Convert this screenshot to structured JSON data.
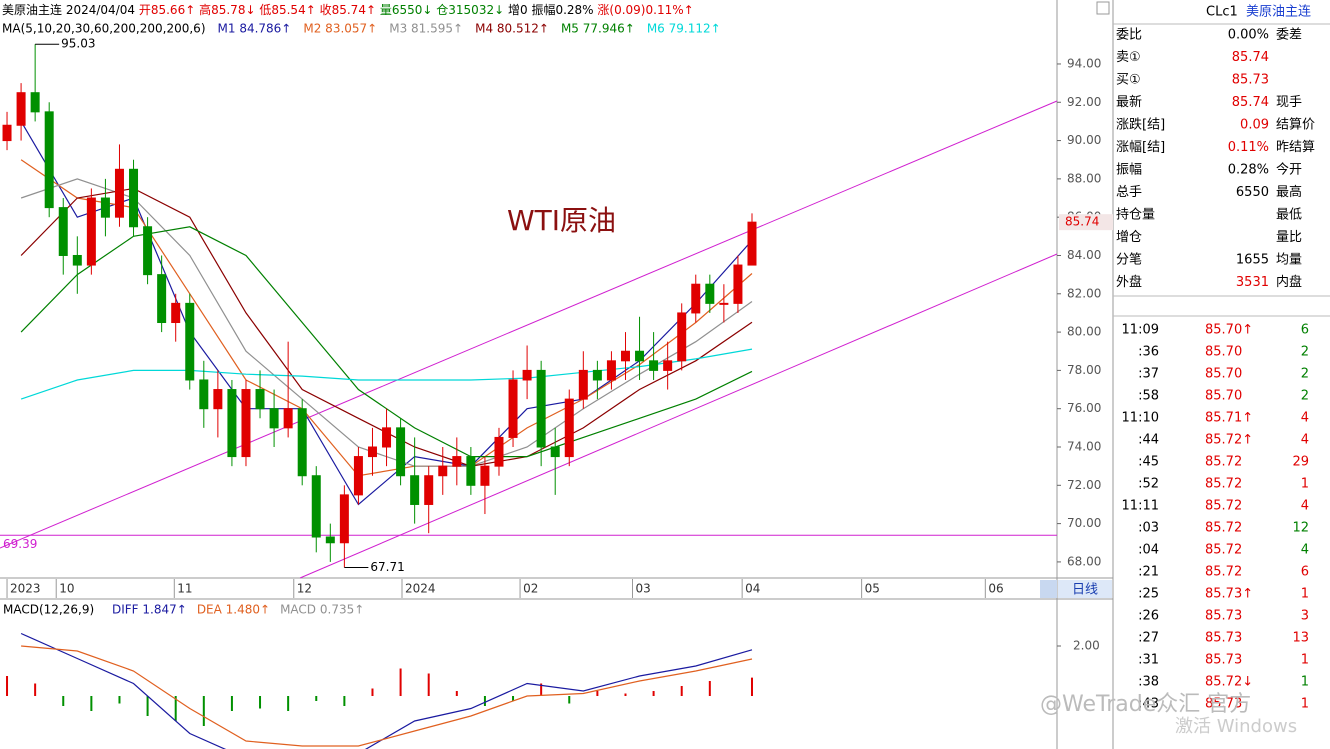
{
  "chart_data": {
    "type": "candlestick",
    "header": [
      {
        "text": "美原油主连",
        "color": "#000000"
      },
      {
        "text": "2024/04/04",
        "color": "#000000"
      },
      {
        "text": "开85.66↑",
        "color": "#e00000"
      },
      {
        "text": "高85.78↓",
        "color": "#e00000"
      },
      {
        "text": "低85.54↑",
        "color": "#e00000"
      },
      {
        "text": "收85.74↑",
        "color": "#e00000"
      },
      {
        "text": "量6550↓",
        "color": "#008000"
      },
      {
        "text": "仓315032↓",
        "color": "#008000"
      },
      {
        "text": "增0",
        "color": "#000000"
      },
      {
        "text": "振幅0.28%",
        "color": "#000000"
      },
      {
        "text": "涨(0.09)0.11%↑",
        "color": "#e00000"
      }
    ],
    "ma_title": "MA(5,10,20,30,60,200,200,200,6)",
    "title": "WTI原油",
    "xlim": [
      -0.5,
      74.7
    ],
    "xticks": [
      {
        "value": 0,
        "label": "2023"
      },
      {
        "value": 3.5,
        "label": "10"
      },
      {
        "value": 11.9,
        "label": "11"
      },
      {
        "value": 20.4,
        "label": "12"
      },
      {
        "value": 28.1,
        "label": "2024"
      },
      {
        "value": 36.5,
        "label": "02"
      },
      {
        "value": 44.5,
        "label": "03"
      },
      {
        "value": 52.3,
        "label": "04"
      },
      {
        "value": 60.8,
        "label": "05"
      },
      {
        "value": 69.6,
        "label": "06"
      }
    ],
    "period": "日线",
    "ylim": [
      67.16,
      97.34
    ],
    "yticks": [
      {
        "value": 68,
        "label": "68.00"
      },
      {
        "value": 70,
        "label": "70.00"
      },
      {
        "value": 72,
        "label": "72.00"
      },
      {
        "value": 74,
        "label": "74.00"
      },
      {
        "value": 76,
        "label": "76.00"
      },
      {
        "value": 78,
        "label": "78.00"
      },
      {
        "value": 80,
        "label": "80.00"
      },
      {
        "value": 82,
        "label": "82.00"
      },
      {
        "value": 84,
        "label": "84.00"
      },
      {
        "value": 86,
        "label": "86.00"
      },
      {
        "value": 88,
        "label": "88.00"
      },
      {
        "value": 90,
        "label": "90.00"
      },
      {
        "value": 92,
        "label": "92.00"
      },
      {
        "value": 94,
        "label": "94.00"
      }
    ],
    "up_color": "#e00000",
    "down_color": "#009000",
    "candles": {
      "open": [
        90,
        90.8,
        92.5,
        91.5,
        86.5,
        84,
        83.5,
        87,
        86,
        88.5,
        85.5,
        83,
        80.5,
        81.5,
        77.5,
        76,
        77,
        73.5,
        77,
        76,
        75,
        76,
        72.5,
        69.3,
        69,
        71.5,
        73.5,
        74,
        75,
        72.5,
        71,
        72.5,
        73,
        73.5,
        72,
        73,
        74.5,
        77.5,
        78,
        74,
        73.5,
        76.5,
        78,
        77.5,
        78.5,
        79,
        78.5,
        78,
        78.5,
        81,
        82.5,
        81.5,
        81.5,
        83.5
      ],
      "high": [
        91.5,
        93,
        95.03,
        92,
        87,
        85,
        87.5,
        88,
        89.8,
        89,
        86,
        84,
        82,
        82,
        78.5,
        78,
        77.5,
        77.5,
        78,
        77,
        79.5,
        76.5,
        73,
        70,
        72,
        74,
        75,
        76,
        75.5,
        74.5,
        73,
        74,
        74.5,
        74,
        73.5,
        75,
        78,
        79.3,
        78.5,
        75,
        77,
        79,
        78.5,
        79,
        80,
        80.8,
        80,
        79.5,
        81.5,
        83,
        83,
        82.5,
        84,
        86.2
      ],
      "low": [
        89.5,
        90,
        91,
        86,
        83,
        82,
        83,
        85,
        85.5,
        85,
        82.5,
        80,
        79.5,
        77,
        75,
        74.5,
        73,
        73,
        75.5,
        74,
        74.5,
        72,
        68.5,
        68,
        67.71,
        71,
        72.5,
        73,
        72,
        70,
        69.5,
        71.5,
        72,
        71.5,
        70.5,
        72.5,
        74,
        76.5,
        73,
        71.5,
        73,
        76,
        76.5,
        77,
        77.5,
        77.5,
        77.5,
        77,
        78,
        80.5,
        81,
        80.5,
        81,
        83.5
      ],
      "close": [
        90.8,
        92.5,
        91.5,
        86.5,
        84,
        83.5,
        87,
        86,
        88.5,
        85.5,
        83,
        80.5,
        81.5,
        77.5,
        76,
        77,
        73.5,
        77,
        76,
        75,
        76,
        72.5,
        69.3,
        69,
        71.5,
        73.5,
        74,
        75,
        72.5,
        71,
        72.5,
        73,
        73.5,
        72,
        73,
        74.5,
        77.5,
        78,
        74,
        73.5,
        76.5,
        78,
        77.5,
        78.5,
        79,
        78.5,
        78,
        78.5,
        81,
        82.5,
        81.5,
        81.5,
        83.5,
        85.74
      ]
    },
    "last_price": {
      "value": 85.74,
      "label": "85.74"
    },
    "support": {
      "value": 69.39,
      "label": "69.39"
    },
    "peak": {
      "index": 2,
      "value": 95.03,
      "label": "95.03"
    },
    "trough": {
      "index": 24,
      "value": 67.71,
      "label": "67.71"
    },
    "ma_x": [
      1,
      5,
      9,
      13,
      17,
      21,
      25,
      29,
      33,
      37,
      41,
      45,
      49,
      53
    ],
    "series": [
      {
        "name": "M1 84.786↑",
        "color": "#1a1aa0",
        "values": [
          91,
          86,
          87,
          80,
          76,
          76,
          71,
          73.5,
          73,
          76,
          76.5,
          78.5,
          81.5,
          84.786
        ]
      },
      {
        "name": "M2 83.057↑",
        "color": "#e06020",
        "values": [
          89,
          87,
          86.5,
          82,
          77.5,
          76,
          72.5,
          73,
          73,
          75,
          76.5,
          78.3,
          80.5,
          83.057
        ]
      },
      {
        "name": "M3 81.595↑",
        "color": "#909090",
        "values": [
          87,
          88,
          87,
          84,
          79,
          76.5,
          74,
          73,
          73,
          74,
          76,
          77.8,
          79.5,
          81.595
        ]
      },
      {
        "name": "M4 80.512↑",
        "color": "#8b0000",
        "values": [
          84,
          87,
          87.5,
          86,
          81,
          77,
          75.5,
          74,
          73,
          73.5,
          75,
          77,
          78.5,
          80.512
        ]
      },
      {
        "name": "M5 77.946↑",
        "color": "#008000",
        "values": [
          80,
          83,
          85,
          85.5,
          84,
          80.5,
          77,
          75,
          73.5,
          73.5,
          74.5,
          75.5,
          76.5,
          77.946
        ]
      },
      {
        "name": "M6 79.112↑",
        "color": "#00d8d8",
        "values": [
          76.5,
          77.5,
          78,
          78,
          77.8,
          77.7,
          77.5,
          77.5,
          77.5,
          77.6,
          77.9,
          78.2,
          78.6,
          79.112
        ]
      }
    ],
    "macd": {
      "title": "MACD(12,26,9)",
      "ylim": [
        -2.12,
        3.84
      ],
      "yticks": [
        {
          "value": 2,
          "label": "2.00"
        }
      ],
      "x": [
        1,
        5,
        9,
        13,
        17,
        21,
        25,
        29,
        33,
        37,
        41,
        45,
        49,
        53
      ],
      "series": [
        {
          "name": "DIFF 1.847↑",
          "color": "#1a1aa0",
          "values": [
            2.5,
            1.5,
            0.5,
            -1.5,
            -2.5,
            -2.2,
            -2.3,
            -1,
            -0.5,
            0.5,
            0.2,
            0.8,
            1.2,
            1.847
          ]
        },
        {
          "name": "DEA 1.480↑",
          "color": "#e06020",
          "values": [
            2.0,
            1.8,
            1.0,
            -0.5,
            -1.8,
            -2.0,
            -2.0,
            -1.4,
            -0.8,
            0,
            0.1,
            0.6,
            1.0,
            1.48
          ]
        }
      ],
      "hist_name": "MACD 0.735↑",
      "hist_color": "#909090",
      "hist_x": [
        0,
        2,
        4,
        6,
        8,
        10,
        12,
        14,
        16,
        18,
        20,
        22,
        24,
        26,
        28,
        30,
        32,
        34,
        36,
        38,
        40,
        42,
        44,
        46,
        48,
        50,
        53
      ],
      "hist": [
        0.8,
        0.5,
        -0.4,
        -0.6,
        -0.3,
        -0.8,
        -1,
        -1.2,
        -0.6,
        -0.5,
        -0.6,
        -0.2,
        -0.4,
        0.3,
        1.1,
        0.9,
        0.2,
        -0.4,
        -0.2,
        0.5,
        -0.3,
        0.2,
        0.1,
        0.2,
        0.4,
        0.6,
        0.735
      ]
    }
  },
  "panel": {
    "code": "CLc1",
    "name": "美原油主连",
    "quote": [
      {
        "label": "委比",
        "value": "0.00%",
        "color": "#000000",
        "label2": "委差"
      },
      {
        "label": "卖①",
        "value": "85.74",
        "color": "#e00000"
      },
      {
        "label": "买①",
        "value": "85.73",
        "color": "#e00000"
      },
      {
        "label": "最新",
        "value": "85.74",
        "color": "#e00000",
        "label2": "现手"
      },
      {
        "label": "涨跌[结]",
        "value": "0.09",
        "color": "#e00000",
        "label2": "结算价"
      },
      {
        "label": "涨幅[结]",
        "value": "0.11%",
        "color": "#e00000",
        "label2": "昨结算"
      },
      {
        "label": "振幅",
        "value": "0.28%",
        "color": "#000000",
        "label2": "今开"
      },
      {
        "label": "总手",
        "value": "6550",
        "color": "#000000",
        "label2": "最高"
      },
      {
        "label": "持仓量",
        "label2": "最低"
      },
      {
        "label": "增仓",
        "label2": "量比"
      },
      {
        "label": "分笔",
        "value": "1655",
        "color": "#000000",
        "label2": "均量"
      },
      {
        "label": "外盘",
        "value": "3531",
        "color": "#e00000",
        "label2": "内盘"
      }
    ],
    "trades": [
      {
        "time": "11:09",
        "price": "85.70↑",
        "volume": "6",
        "color": "#008000"
      },
      {
        "time": ":36",
        "price": "85.70",
        "volume": "2",
        "color": "#008000"
      },
      {
        "time": ":37",
        "price": "85.70",
        "volume": "2",
        "color": "#008000"
      },
      {
        "time": ":58",
        "price": "85.70",
        "volume": "2",
        "color": "#008000"
      },
      {
        "time": "11:10",
        "price": "85.71↑",
        "volume": "4",
        "color": "#e00000"
      },
      {
        "time": ":44",
        "price": "85.72↑",
        "volume": "4",
        "color": "#e00000"
      },
      {
        "time": ":45",
        "price": "85.72",
        "volume": "29",
        "color": "#e00000"
      },
      {
        "time": ":52",
        "price": "85.72",
        "volume": "1",
        "color": "#e00000"
      },
      {
        "time": "11:11",
        "price": "85.72",
        "volume": "4",
        "color": "#e00000"
      },
      {
        "time": ":03",
        "price": "85.72",
        "volume": "12",
        "color": "#008000"
      },
      {
        "time": ":04",
        "price": "85.72",
        "volume": "4",
        "color": "#008000"
      },
      {
        "time": ":21",
        "price": "85.72",
        "volume": "6",
        "color": "#e00000"
      },
      {
        "time": ":25",
        "price": "85.73↑",
        "volume": "1",
        "color": "#e00000"
      },
      {
        "time": ":26",
        "price": "85.73",
        "volume": "3",
        "color": "#e00000"
      },
      {
        "time": ":27",
        "price": "85.73",
        "volume": "13",
        "color": "#e00000"
      },
      {
        "time": ":31",
        "price": "85.73",
        "volume": "1",
        "color": "#e00000"
      },
      {
        "time": ":38",
        "price": "85.72↓",
        "volume": "1",
        "color": "#008000"
      },
      {
        "time": ":43",
        "price": "85.73",
        "volume": "1",
        "color": "#e00000"
      }
    ]
  },
  "watermark": {
    "brand": "@WeTrade众汇 官方",
    "system": "激活 Windows"
  }
}
